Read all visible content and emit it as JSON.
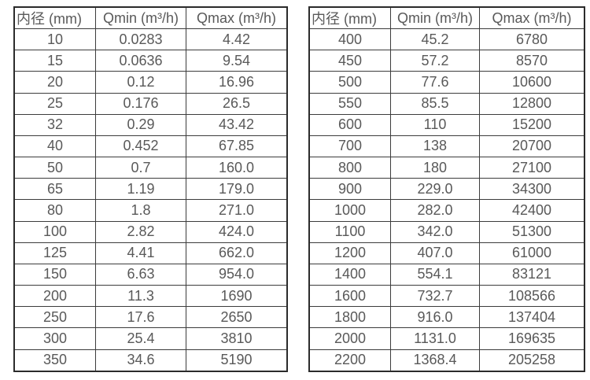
{
  "page": {
    "background_color": "#ffffff",
    "border_color": "#2b2b2b",
    "grid_line_color": "#3c3c3c",
    "text_color": "#595959"
  },
  "tables": [
    {
      "name": "flow-range-table-small-diameters",
      "headers": [
        "内径 (mm)",
        "Qmin (m³/h)",
        "Qmax (m³/h)"
      ],
      "rows": [
        [
          "10",
          "0.0283",
          "4.42"
        ],
        [
          "15",
          "0.0636",
          "9.54"
        ],
        [
          "20",
          "0.12",
          "16.96"
        ],
        [
          "25",
          "0.176",
          "26.5"
        ],
        [
          "32",
          "0.29",
          "43.42"
        ],
        [
          "40",
          "0.452",
          "67.85"
        ],
        [
          "50",
          "0.7",
          "160.0"
        ],
        [
          "65",
          "1.19",
          "179.0"
        ],
        [
          "80",
          "1.8",
          "271.0"
        ],
        [
          "100",
          "2.82",
          "424.0"
        ],
        [
          "125",
          "4.41",
          "662.0"
        ],
        [
          "150",
          "6.63",
          "954.0"
        ],
        [
          "200",
          "11.3",
          "1690"
        ],
        [
          "250",
          "17.6",
          "2650"
        ],
        [
          "300",
          "25.4",
          "3810"
        ],
        [
          "350",
          "34.6",
          "5190"
        ]
      ]
    },
    {
      "name": "flow-range-table-large-diameters",
      "headers": [
        "内径 (mm)",
        "Qmin (m³/h)",
        "Qmax (m³/h)"
      ],
      "rows": [
        [
          "400",
          "45.2",
          "6780"
        ],
        [
          "450",
          "57.2",
          "8570"
        ],
        [
          "500",
          "77.6",
          "10600"
        ],
        [
          "550",
          "85.5",
          "12800"
        ],
        [
          "600",
          "110",
          "15200"
        ],
        [
          "700",
          "138",
          "20700"
        ],
        [
          "800",
          "180",
          "27100"
        ],
        [
          "900",
          "229.0",
          "34300"
        ],
        [
          "1000",
          "282.0",
          "42400"
        ],
        [
          "1100",
          "342.0",
          "51300"
        ],
        [
          "1200",
          "407.0",
          "61000"
        ],
        [
          "1400",
          "554.1",
          "83121"
        ],
        [
          "1600",
          "732.7",
          "108566"
        ],
        [
          "1800",
          "916.0",
          "137404"
        ],
        [
          "2000",
          "1131.0",
          "169635"
        ],
        [
          "2200",
          "1368.4",
          "205258"
        ]
      ]
    }
  ]
}
